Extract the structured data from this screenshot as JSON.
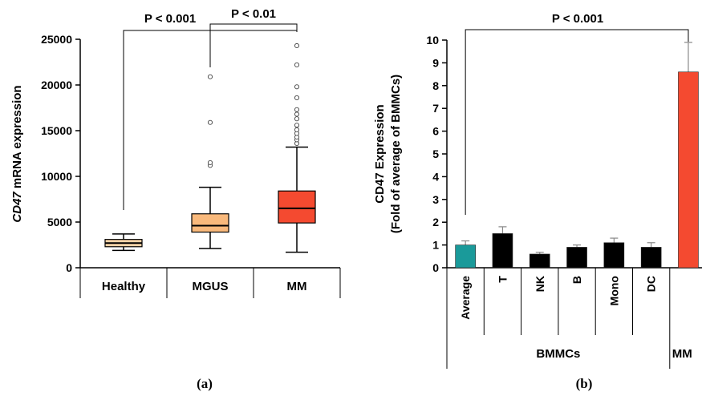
{
  "chart_data": [
    {
      "type": "box",
      "panel_label": "(a)",
      "ylabel_italic": "CD47",
      "ylabel_rest": " mRNA expression",
      "ylim": [
        0,
        25000
      ],
      "yticks": [
        0,
        5000,
        10000,
        15000,
        20000,
        25000
      ],
      "categories": [
        "Healthy",
        "MGUS",
        "MM"
      ],
      "colors": [
        "#f9d4a8",
        "#f9b97c",
        "#f44a30"
      ],
      "boxes": [
        {
          "category": "Healthy",
          "whisker_low": 1900,
          "q1": 2300,
          "median": 2700,
          "q3": 3100,
          "whisker_high": 3700,
          "outliers": []
        },
        {
          "category": "MGUS",
          "whisker_low": 2100,
          "q1": 3900,
          "median": 4600,
          "q3": 5900,
          "whisker_high": 8800,
          "outliers": [
            11200,
            11500,
            15900,
            20900
          ]
        },
        {
          "category": "MM",
          "whisker_low": 1700,
          "q1": 4900,
          "median": 6500,
          "q3": 8400,
          "whisker_high": 13200,
          "outliers": [
            13600,
            14000,
            14300,
            14700,
            15100,
            15600,
            16300,
            16800,
            17300,
            18600,
            19800,
            22200,
            24300
          ]
        }
      ],
      "annotations": [
        {
          "text": "P < 0.001",
          "from": "Healthy",
          "to": "MM"
        },
        {
          "text": "P < 0.01",
          "from": "MGUS",
          "to": "MM"
        }
      ]
    },
    {
      "type": "bar",
      "panel_label": "(b)",
      "ylabel_line1": "CD47 Expression",
      "ylabel_line2": "(Fold of average of BMMCs)",
      "ylim": [
        0,
        10
      ],
      "yticks": [
        0,
        1,
        2,
        3,
        4,
        5,
        6,
        7,
        8,
        9,
        10
      ],
      "categories": [
        "Average",
        "T",
        "NK",
        "B",
        "Mono",
        "DC",
        "MM"
      ],
      "values": [
        1.0,
        1.5,
        0.6,
        0.9,
        1.1,
        0.9,
        8.6
      ],
      "errors": [
        0.18,
        0.3,
        0.08,
        0.1,
        0.2,
        0.2,
        1.3
      ],
      "colors": [
        "#1a9a9a",
        "#000000",
        "#000000",
        "#000000",
        "#000000",
        "#000000",
        "#f44a30"
      ],
      "groups": [
        {
          "label": "BMMCs",
          "members": [
            "Average",
            "T",
            "NK",
            "B",
            "Mono",
            "DC"
          ]
        },
        {
          "label": "MM",
          "members": [
            "MM"
          ]
        }
      ],
      "annotations": [
        {
          "text": "P < 0.001",
          "from": "Average",
          "to": "MM"
        }
      ]
    }
  ]
}
